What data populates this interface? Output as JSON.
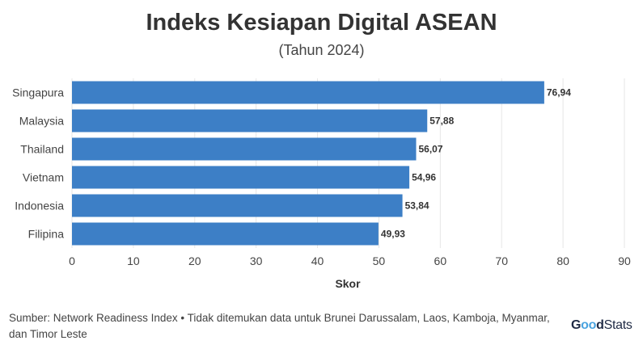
{
  "title": "Indeks Kesiapan Digital ASEAN",
  "subtitle": "(Tahun 2024)",
  "source": "Sumber: Network Readiness Index • Tidak ditemukan data untuk Brunei Darussalam, Laos, Kamboja, Myanmar, dan Timor Leste",
  "logo": {
    "part1": "G",
    "part2": "oo",
    "part3": "d",
    "part4": "Stats"
  },
  "colors": {
    "bar": "#3d7fc6",
    "grid": "#e6e6e6",
    "text": "#333333"
  },
  "chart_data": {
    "type": "bar",
    "orientation": "horizontal",
    "categories": [
      "Singapura",
      "Malaysia",
      "Thailand",
      "Vietnam",
      "Indonesia",
      "Filipina"
    ],
    "values": [
      76.94,
      57.88,
      56.07,
      54.96,
      53.84,
      49.93
    ],
    "value_labels": [
      "76,94",
      "57,88",
      "56,07",
      "54,96",
      "53,84",
      "49,93"
    ],
    "xlabel": "Skor",
    "ylabel": "",
    "xlim": [
      0,
      90
    ],
    "xticks": [
      0,
      10,
      20,
      30,
      40,
      50,
      60,
      70,
      80,
      90
    ],
    "grid": true,
    "legend": "none"
  }
}
